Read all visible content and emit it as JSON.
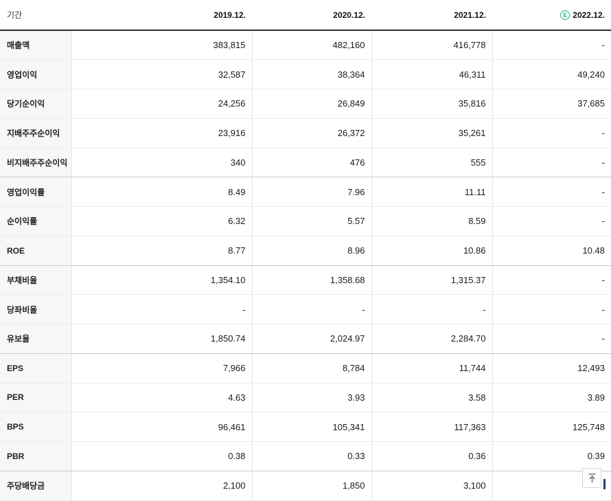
{
  "table": {
    "period_label": "기간",
    "columns": [
      "2019.12.",
      "2020.12.",
      "2021.12.",
      "2022.12."
    ],
    "estimate_badge": "E",
    "rows": [
      {
        "label": "매출액",
        "values": [
          "383,815",
          "482,160",
          "416,778",
          "-"
        ],
        "section_end": false
      },
      {
        "label": "영업이익",
        "values": [
          "32,587",
          "38,364",
          "46,311",
          "49,240"
        ],
        "section_end": false
      },
      {
        "label": "당기순이익",
        "values": [
          "24,256",
          "26,849",
          "35,816",
          "37,685"
        ],
        "section_end": false
      },
      {
        "label": "지배주주순이익",
        "values": [
          "23,916",
          "26,372",
          "35,261",
          "-"
        ],
        "section_end": false
      },
      {
        "label": "비지배주주순이익",
        "values": [
          "340",
          "476",
          "555",
          "-"
        ],
        "section_end": true
      },
      {
        "label": "영업이익률",
        "values": [
          "8.49",
          "7.96",
          "11.11",
          "-"
        ],
        "section_end": false
      },
      {
        "label": "순이익률",
        "values": [
          "6.32",
          "5.57",
          "8.59",
          "-"
        ],
        "section_end": false
      },
      {
        "label": "ROE",
        "values": [
          "8.77",
          "8.96",
          "10.86",
          "10.48"
        ],
        "section_end": true
      },
      {
        "label": "부채비율",
        "values": [
          "1,354.10",
          "1,358.68",
          "1,315.37",
          "-"
        ],
        "section_end": false
      },
      {
        "label": "당좌비율",
        "values": [
          "-",
          "-",
          "-",
          "-"
        ],
        "section_end": false
      },
      {
        "label": "유보율",
        "values": [
          "1,850.74",
          "2,024.97",
          "2,284.70",
          "-"
        ],
        "section_end": true
      },
      {
        "label": "EPS",
        "values": [
          "7,966",
          "8,784",
          "11,744",
          "12,493"
        ],
        "section_end": false
      },
      {
        "label": "PER",
        "values": [
          "4.63",
          "3.93",
          "3.58",
          "3.89"
        ],
        "section_end": false
      },
      {
        "label": "BPS",
        "values": [
          "96,461",
          "105,341",
          "117,363",
          "125,748"
        ],
        "section_end": false
      },
      {
        "label": "PBR",
        "values": [
          "0.38",
          "0.33",
          "0.36",
          "0.39"
        ],
        "section_end": true
      },
      {
        "label": "주당배당금",
        "values": [
          "2,100",
          "1,850",
          "3,100",
          ""
        ],
        "section_end": false
      }
    ]
  },
  "colors": {
    "estimate_green": "#28b286",
    "header_border": "#2b2b2b",
    "section_border": "#c9c9c9",
    "row_border": "#ececec",
    "label_bg": "#f7f7f8"
  },
  "scroll_top_button": {
    "icon": "arrow-up-to-top"
  }
}
